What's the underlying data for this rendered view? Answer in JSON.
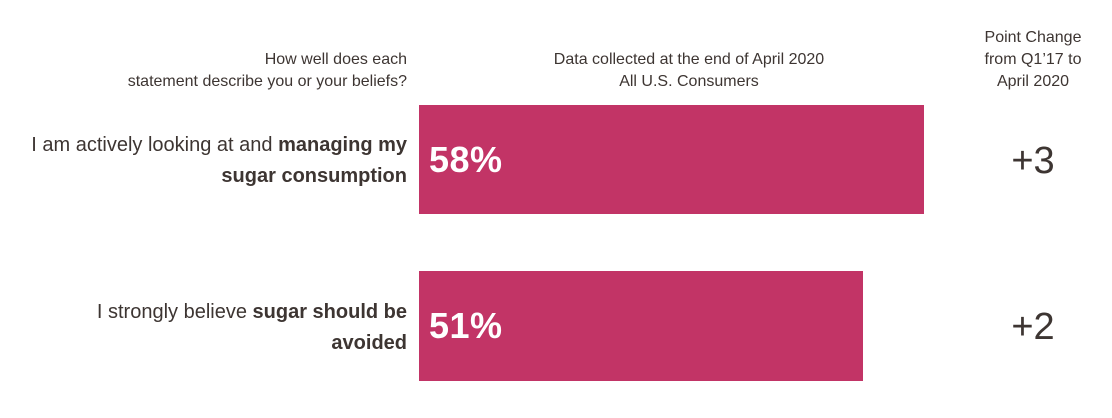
{
  "headers": {
    "question": [
      "How well does each",
      "statement describe you or your beliefs?"
    ],
    "data": [
      "Data collected at the end of April 2020",
      "All U.S. Consumers"
    ],
    "change": [
      "Point Change",
      "from Q1’17 to",
      "April 2020"
    ]
  },
  "colors": {
    "bar": "#c23466",
    "text": "#3d3532",
    "bar_label": "#ffffff"
  },
  "rows": [
    {
      "label_line1_normal": "I am actively looking at and ",
      "label_line1_bold": "managing my",
      "label_line2_bold": "sugar consumption",
      "value_label": "58%",
      "change": "+3"
    },
    {
      "label_line1_normal": "I strongly believe ",
      "label_line1_bold": "sugar should be",
      "label_line2_bold": "avoided",
      "value_label": "51%",
      "change": "+2"
    }
  ],
  "chart_data": {
    "type": "bar",
    "orientation": "horizontal",
    "categories": [
      "I am actively looking at and managing my sugar consumption",
      "I strongly believe sugar should be avoided"
    ],
    "values": [
      58,
      51
    ],
    "unit": "%",
    "point_change": [
      3,
      2
    ],
    "grid": false,
    "axes_visible": false
  }
}
